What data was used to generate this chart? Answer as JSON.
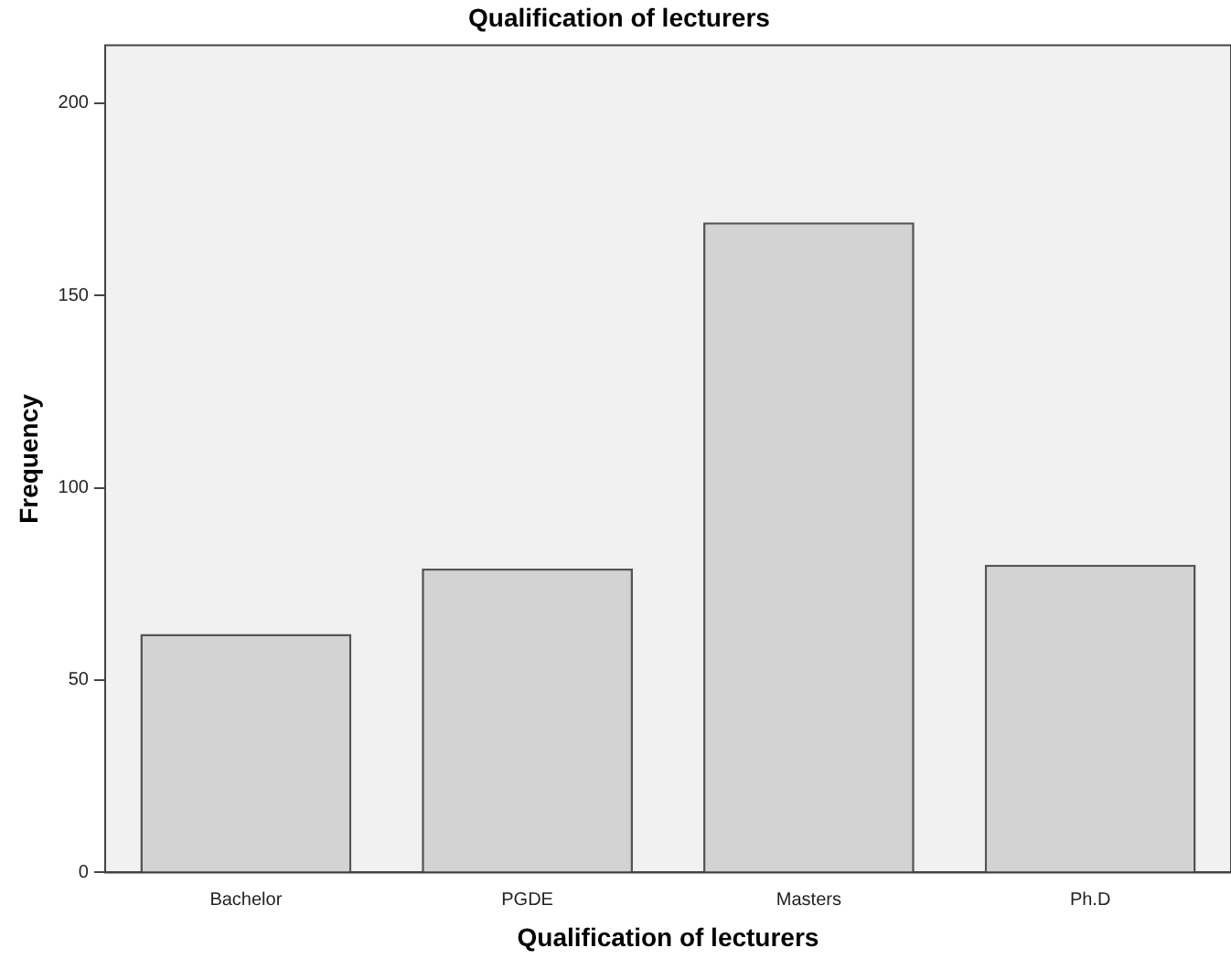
{
  "chart_data": {
    "type": "bar",
    "title": "Qualification of lecturers",
    "xlabel": "Qualification of lecturers",
    "ylabel": "Frequency",
    "categories": [
      "Bachelor",
      "PGDE",
      "Masters",
      "Ph.D"
    ],
    "values": [
      62,
      79,
      169,
      80
    ],
    "color": "#d3d3d3",
    "ylim": [
      0,
      215
    ],
    "yticks": [
      0,
      50,
      100,
      150,
      200
    ],
    "grid": false,
    "legend": false
  }
}
